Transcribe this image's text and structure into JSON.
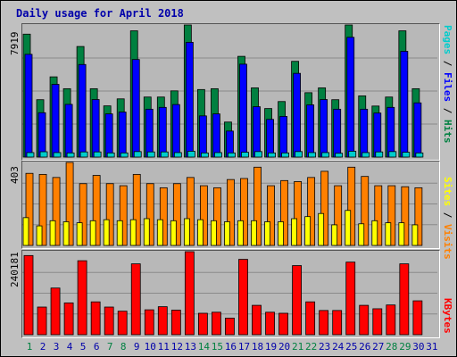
{
  "title": "Daily usage for April 2018",
  "colors": {
    "pages": "#00cccc",
    "files": "#0000ff",
    "hits": "#008040",
    "visits": "#ff8000",
    "sites": "#ffff00",
    "kbytes": "#ff0000",
    "weekend_day": "#008040",
    "weekday": "#0000aa"
  },
  "chart_data": [
    {
      "type": "bar",
      "title": "Daily usage for April 2018",
      "categories": [
        "1",
        "2",
        "3",
        "4",
        "5",
        "6",
        "7",
        "8",
        "9",
        "10",
        "11",
        "12",
        "13",
        "14",
        "15",
        "16",
        "17",
        "18",
        "19",
        "20",
        "21",
        "22",
        "23",
        "24",
        "25",
        "26",
        "27",
        "28",
        "29",
        "30",
        "31"
      ],
      "weekend_days": [
        1,
        7,
        8,
        14,
        15,
        21,
        22,
        28,
        29
      ],
      "y_max_label": "7919",
      "ylim": [
        0,
        7919
      ],
      "legend_text": [
        "Pages",
        "/",
        "Files",
        "/",
        "Hits"
      ],
      "series": [
        {
          "name": "Hits",
          "values": [
            7370,
            3440,
            4810,
            4100,
            6630,
            4100,
            3070,
            3490,
            7570,
            3600,
            3600,
            3970,
            7919,
            4050,
            4100,
            2100,
            6040,
            4150,
            2910,
            3330,
            5740,
            3860,
            4150,
            3440,
            7919,
            3670,
            3060,
            3600,
            7570,
            4100,
            null
          ]
        },
        {
          "name": "Files",
          "values": [
            6160,
            2660,
            4360,
            3160,
            5550,
            3450,
            2590,
            2700,
            5850,
            2870,
            2980,
            3150,
            6880,
            2470,
            2590,
            1560,
            5570,
            3020,
            2260,
            2440,
            5020,
            3130,
            3450,
            2870,
            7180,
            2870,
            2640,
            2980,
            6340,
            3250,
            null
          ]
        },
        {
          "name": "Pages",
          "values": [
            270,
            320,
            270,
            250,
            310,
            310,
            250,
            250,
            330,
            310,
            310,
            270,
            350,
            250,
            270,
            250,
            290,
            330,
            250,
            250,
            330,
            270,
            270,
            230,
            350,
            270,
            310,
            330,
            290,
            250,
            null
          ]
        }
      ]
    },
    {
      "type": "bar",
      "y_max_label": "403",
      "ylim": [
        0,
        403
      ],
      "legend_text": [
        "Sites",
        "/",
        "Visits"
      ],
      "series": [
        {
          "name": "Visits",
          "values": [
            350,
            345,
            330,
            403,
            300,
            340,
            300,
            290,
            345,
            300,
            280,
            300,
            330,
            290,
            280,
            320,
            325,
            380,
            290,
            315,
            310,
            330,
            360,
            290,
            380,
            335,
            290,
            290,
            285,
            280,
            null
          ]
        },
        {
          "name": "Sites",
          "values": [
            135,
            95,
            120,
            115,
            110,
            120,
            125,
            120,
            125,
            130,
            125,
            120,
            130,
            125,
            120,
            115,
            120,
            120,
            115,
            115,
            130,
            140,
            155,
            100,
            170,
            105,
            120,
            110,
            110,
            100,
            null
          ]
        }
      ]
    },
    {
      "type": "bar",
      "y_max_label": "240181",
      "ylim": [
        0,
        240181
      ],
      "legend_text": [
        "KBytes"
      ],
      "series": [
        {
          "name": "KBytes",
          "values": [
            229000,
            80000,
            135000,
            92000,
            214000,
            95000,
            80000,
            68000,
            205000,
            72000,
            81000,
            71000,
            240181,
            62000,
            65000,
            48000,
            218000,
            85000,
            65000,
            62000,
            200000,
            95000,
            70000,
            70000,
            210000,
            85000,
            75000,
            86000,
            205000,
            98000,
            null
          ]
        }
      ]
    }
  ]
}
